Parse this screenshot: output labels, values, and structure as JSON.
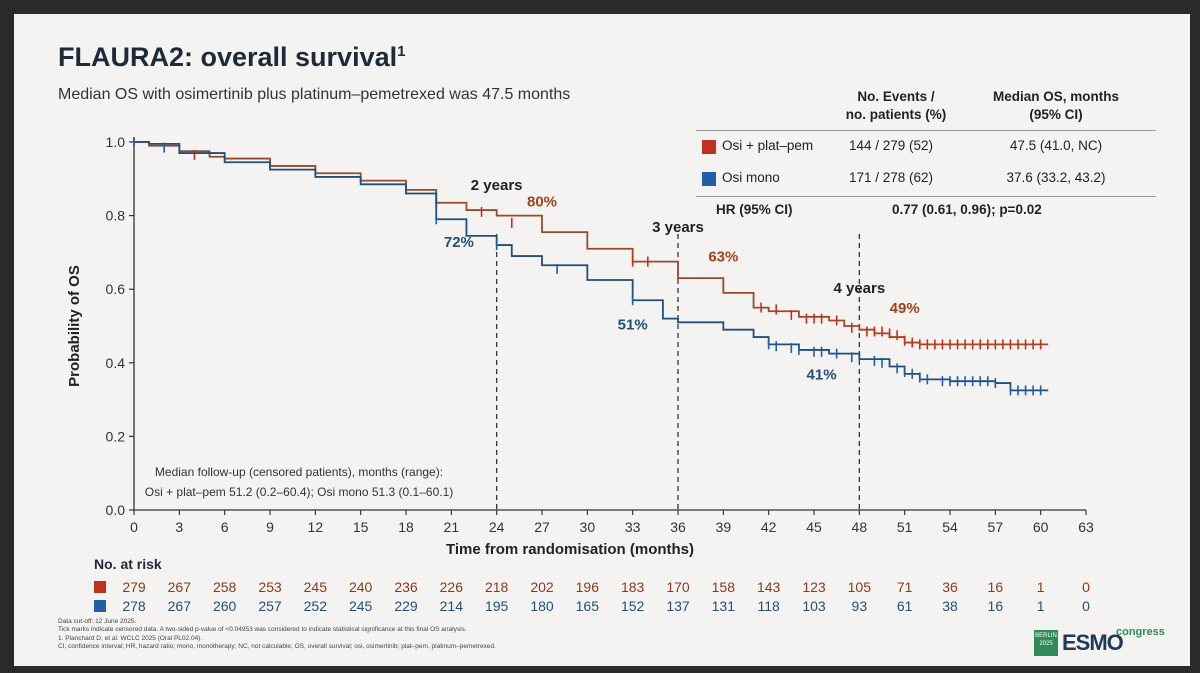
{
  "slide": {
    "title": "FLAURA2: overall survival",
    "title_superscript": "1",
    "subtitle": "Median OS with osimertinib plus platinum–pemetrexed was 47.5 months"
  },
  "legend_table": {
    "col_events": [
      "No. Events /",
      "no. patients (%)"
    ],
    "col_median": [
      "Median OS, months",
      "(95% CI)"
    ],
    "rows": [
      {
        "name": "Osi + plat–pem",
        "color": "#c0311f",
        "events": "144 / 279 (52)",
        "median": "47.5 (41.0, NC)"
      },
      {
        "name": "Osi mono",
        "color": "#1f5fa8",
        "events": "171 / 278 (62)",
        "median": "37.6 (33.2, 43.2)"
      }
    ],
    "hr_label": "HR (95% CI)",
    "hr_value": "0.77 (0.61, 0.96); p=0.02"
  },
  "chart_data": {
    "type": "line",
    "xlabel": "Time from randomisation (months)",
    "ylabel": "Probability of OS",
    "xlim": [
      0,
      63
    ],
    "ylim": [
      0,
      1.0
    ],
    "x_ticks": [
      "0",
      "3",
      "6",
      "9",
      "12",
      "15",
      "18",
      "21",
      "24",
      "27",
      "30",
      "33",
      "36",
      "39",
      "42",
      "45",
      "48",
      "51",
      "54",
      "57",
      "60",
      "63"
    ],
    "y_ticks": [
      "0.0",
      "0.2",
      "0.4",
      "0.6",
      "0.8",
      "1.0"
    ],
    "series": [
      {
        "name": "Osi + plat–pem",
        "color": "#9a4a2a",
        "censor_color": "#d02a1a",
        "points": [
          [
            0,
            1.0
          ],
          [
            1,
            0.99
          ],
          [
            3,
            0.975
          ],
          [
            5,
            0.96
          ],
          [
            6,
            0.955
          ],
          [
            9,
            0.935
          ],
          [
            12,
            0.915
          ],
          [
            15,
            0.895
          ],
          [
            18,
            0.87
          ],
          [
            20,
            0.835
          ],
          [
            22,
            0.815
          ],
          [
            24,
            0.8
          ],
          [
            27,
            0.755
          ],
          [
            30,
            0.71
          ],
          [
            33,
            0.675
          ],
          [
            36,
            0.63
          ],
          [
            39,
            0.59
          ],
          [
            41,
            0.55
          ],
          [
            42,
            0.54
          ],
          [
            44,
            0.525
          ],
          [
            46,
            0.515
          ],
          [
            47,
            0.5
          ],
          [
            48,
            0.49
          ],
          [
            49,
            0.48
          ],
          [
            50,
            0.47
          ],
          [
            51,
            0.455
          ],
          [
            52,
            0.45
          ],
          [
            60.5,
            0.45
          ]
        ],
        "censored": [
          [
            0,
            1.0
          ],
          [
            4,
            0.965
          ],
          [
            20,
            0.835
          ],
          [
            23,
            0.81
          ],
          [
            25,
            0.78
          ],
          [
            33,
            0.675
          ],
          [
            34,
            0.675
          ],
          [
            41.5,
            0.55
          ],
          [
            42.5,
            0.545
          ],
          [
            43.5,
            0.53
          ],
          [
            44.5,
            0.52
          ],
          [
            45,
            0.52
          ],
          [
            45.5,
            0.52
          ],
          [
            46.5,
            0.515
          ],
          [
            47.5,
            0.495
          ],
          [
            48.5,
            0.485
          ],
          [
            49,
            0.485
          ],
          [
            49.5,
            0.485
          ],
          [
            50,
            0.48
          ],
          [
            50.5,
            0.475
          ],
          [
            51,
            0.46
          ],
          [
            51.5,
            0.455
          ],
          [
            52,
            0.45
          ],
          [
            52.5,
            0.45
          ],
          [
            53,
            0.45
          ],
          [
            53.5,
            0.45
          ],
          [
            54,
            0.45
          ],
          [
            54.5,
            0.45
          ],
          [
            55,
            0.45
          ],
          [
            55.5,
            0.45
          ],
          [
            56,
            0.45
          ],
          [
            56.5,
            0.45
          ],
          [
            57,
            0.45
          ],
          [
            57.5,
            0.45
          ],
          [
            58,
            0.45
          ],
          [
            58.5,
            0.45
          ],
          [
            59,
            0.45
          ],
          [
            59.5,
            0.45
          ],
          [
            60,
            0.45
          ]
        ]
      },
      {
        "name": "Osi mono",
        "color": "#1f4f7a",
        "censor_color": "#1f5fa8",
        "points": [
          [
            0,
            1.0
          ],
          [
            1,
            0.995
          ],
          [
            3,
            0.97
          ],
          [
            6,
            0.945
          ],
          [
            9,
            0.925
          ],
          [
            12,
            0.905
          ],
          [
            15,
            0.885
          ],
          [
            18,
            0.86
          ],
          [
            20,
            0.79
          ],
          [
            22,
            0.745
          ],
          [
            24,
            0.72
          ],
          [
            25,
            0.69
          ],
          [
            27,
            0.665
          ],
          [
            30,
            0.625
          ],
          [
            33,
            0.57
          ],
          [
            35,
            0.52
          ],
          [
            36,
            0.51
          ],
          [
            39,
            0.49
          ],
          [
            41,
            0.47
          ],
          [
            42,
            0.45
          ],
          [
            44,
            0.435
          ],
          [
            46,
            0.425
          ],
          [
            48,
            0.41
          ],
          [
            50,
            0.39
          ],
          [
            51,
            0.37
          ],
          [
            52,
            0.355
          ],
          [
            54,
            0.35
          ],
          [
            57,
            0.345
          ],
          [
            58,
            0.325
          ],
          [
            60.5,
            0.325
          ]
        ],
        "censored": [
          [
            0,
            1.0
          ],
          [
            2,
            0.985
          ],
          [
            20,
            0.79
          ],
          [
            24,
            0.72
          ],
          [
            28,
            0.655
          ],
          [
            33,
            0.57
          ],
          [
            42,
            0.45
          ],
          [
            42.5,
            0.445
          ],
          [
            43.5,
            0.44
          ],
          [
            44,
            0.435
          ],
          [
            45,
            0.43
          ],
          [
            45.5,
            0.43
          ],
          [
            46.5,
            0.425
          ],
          [
            47.5,
            0.415
          ],
          [
            49,
            0.405
          ],
          [
            49.5,
            0.4
          ],
          [
            50.5,
            0.385
          ],
          [
            51,
            0.375
          ],
          [
            51.5,
            0.37
          ],
          [
            52,
            0.36
          ],
          [
            52.5,
            0.355
          ],
          [
            53.5,
            0.35
          ],
          [
            54,
            0.35
          ],
          [
            54.5,
            0.35
          ],
          [
            55,
            0.35
          ],
          [
            55.5,
            0.35
          ],
          [
            56,
            0.35
          ],
          [
            56.5,
            0.35
          ],
          [
            57,
            0.345
          ],
          [
            58,
            0.325
          ],
          [
            58.5,
            0.325
          ],
          [
            59,
            0.325
          ],
          [
            59.5,
            0.325
          ],
          [
            60,
            0.325
          ]
        ]
      }
    ],
    "landmarks": [
      {
        "x": 24,
        "label": "2 years",
        "osi_plat": "80%",
        "osi_mono": "72%"
      },
      {
        "x": 36,
        "label": "3 years",
        "osi_plat": "63%",
        "osi_mono": "51%"
      },
      {
        "x": 48,
        "label": "4 years",
        "osi_plat": "49%",
        "osi_mono": "41%"
      }
    ],
    "followup_note": [
      "Median follow-up (censored patients), months (range):",
      "Osi + plat–pem 51.2 (0.2–60.4); Osi mono 51.3 (0.1–60.1)"
    ],
    "at_risk_title": "No. at risk",
    "at_risk": [
      {
        "color": "#c0311f",
        "text_color": "#8a3a1a",
        "values": [
          "279",
          "267",
          "258",
          "253",
          "245",
          "240",
          "236",
          "226",
          "218",
          "202",
          "196",
          "183",
          "170",
          "158",
          "143",
          "123",
          "105",
          "71",
          "36",
          "16",
          "1",
          "0"
        ]
      },
      {
        "color": "#1f5fa8",
        "text_color": "#1f4f7a",
        "values": [
          "278",
          "267",
          "260",
          "257",
          "252",
          "245",
          "229",
          "214",
          "195",
          "180",
          "165",
          "152",
          "137",
          "131",
          "118",
          "103",
          "93",
          "61",
          "38",
          "16",
          "1",
          "0"
        ]
      }
    ]
  },
  "footnotes": [
    "Data cut-off: 12 June 2025.",
    "Tick marks indicate censored data. A two-sided p-value of <0.04953 was considered to indicate statistical significance at this final OS analysis.",
    "1. Planchard D, et al. WCLC 2025 (Oral PL02.04).",
    "CI, confidence interval; HR, hazard ratio; mono, monotherapy; NC, not calculable; OS, overall survival; osi, osimertinib; plat–pem, platinum–pemetrexed."
  ],
  "branding": {
    "badge": "BERLIN 2025",
    "logo": "ESMO",
    "congress": "congress"
  }
}
